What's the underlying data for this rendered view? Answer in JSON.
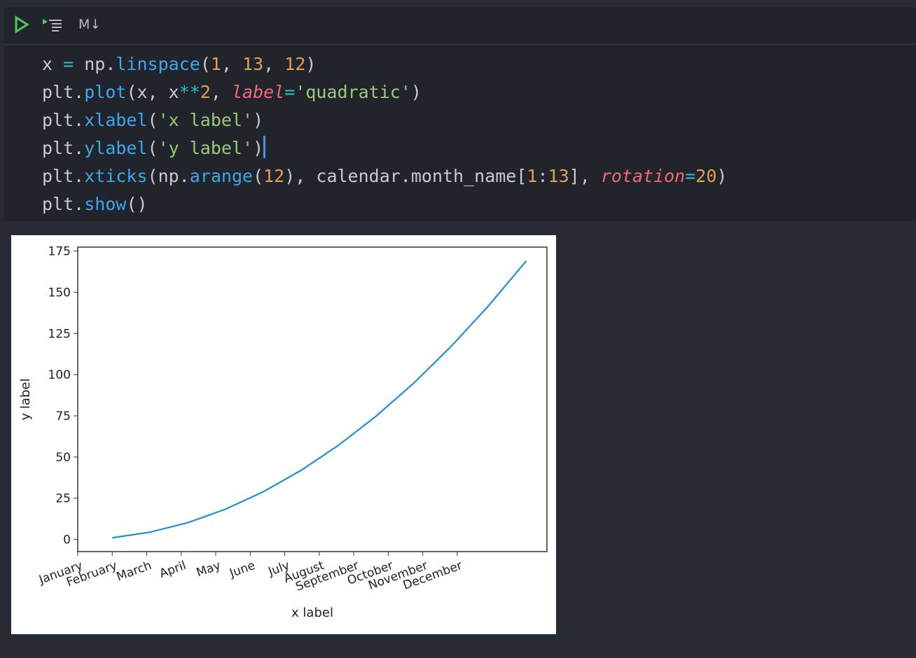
{
  "toolbar": {
    "run_icon": "play-icon",
    "run_all_icon": "run-cells-icon",
    "markdown_label": "M↓"
  },
  "code_lines": [
    [
      [
        "x ",
        ""
      ],
      [
        "=",
        "op"
      ],
      [
        " np.",
        ""
      ],
      [
        "linspace",
        "fn"
      ],
      [
        "(",
        ""
      ],
      [
        "1",
        "num"
      ],
      [
        ", ",
        ""
      ],
      [
        "13",
        "num"
      ],
      [
        ", ",
        ""
      ],
      [
        "12",
        "num"
      ],
      [
        ")",
        ""
      ]
    ],
    [
      [
        "plt.",
        ""
      ],
      [
        "plot",
        "fn"
      ],
      [
        "(x, x",
        ""
      ],
      [
        "**",
        "op"
      ],
      [
        "2",
        "num"
      ],
      [
        ", ",
        ""
      ],
      [
        "label",
        "kw"
      ],
      [
        "=",
        "op"
      ],
      [
        "'quadratic'",
        "str"
      ],
      [
        ")",
        ""
      ]
    ],
    [
      [
        "plt.",
        ""
      ],
      [
        "xlabel",
        "fn"
      ],
      [
        "(",
        ""
      ],
      [
        "'x label'",
        "str"
      ],
      [
        ")",
        ""
      ]
    ],
    [
      [
        "plt.",
        ""
      ],
      [
        "ylabel",
        "fn"
      ],
      [
        "(",
        ""
      ],
      [
        "'y label'",
        "str"
      ],
      [
        ")",
        ""
      ]
    ],
    [
      [
        "plt.",
        ""
      ],
      [
        "xticks",
        "fn"
      ],
      [
        "(np.",
        ""
      ],
      [
        "arange",
        "fn"
      ],
      [
        "(",
        ""
      ],
      [
        "12",
        "num"
      ],
      [
        "), calendar.month_name[",
        ""
      ],
      [
        "1",
        "num"
      ],
      [
        ":",
        ""
      ],
      [
        "13",
        "num"
      ],
      [
        "], ",
        ""
      ],
      [
        "rotation",
        "kw"
      ],
      [
        "=",
        "op"
      ],
      [
        "20",
        "num"
      ],
      [
        ")",
        ""
      ]
    ],
    [
      [
        "plt.",
        ""
      ],
      [
        "show",
        "fn"
      ],
      [
        "()",
        ""
      ]
    ]
  ],
  "chart_data": {
    "type": "line",
    "xlabel": "x label",
    "ylabel": "y label",
    "xlim": [
      0,
      13.6
    ],
    "ylim": [
      -7.4,
      177.4
    ],
    "xticks": [
      0,
      1,
      2,
      3,
      4,
      5,
      6,
      7,
      8,
      9,
      10,
      11
    ],
    "xtick_labels": [
      "January",
      "February",
      "March",
      "April",
      "May",
      "June",
      "July",
      "August",
      "September",
      "October",
      "November",
      "December"
    ],
    "xtick_rotation": 20,
    "yticks": [
      0,
      25,
      50,
      75,
      100,
      125,
      150,
      175
    ],
    "ytick_labels": [
      "0",
      "25",
      "50",
      "75",
      "100",
      "125",
      "150",
      "175"
    ],
    "series": [
      {
        "x": [
          1,
          2.0909,
          3.1818,
          4.2727,
          5.3636,
          6.4545,
          7.5455,
          8.6364,
          9.7273,
          10.8182,
          11.9091,
          13
        ],
        "y": [
          1,
          4.37,
          10.12,
          18.26,
          28.77,
          41.66,
          56.93,
          74.59,
          94.62,
          117.03,
          141.83,
          169
        ],
        "color": "#1f8fd6"
      }
    ],
    "grid": false
  }
}
